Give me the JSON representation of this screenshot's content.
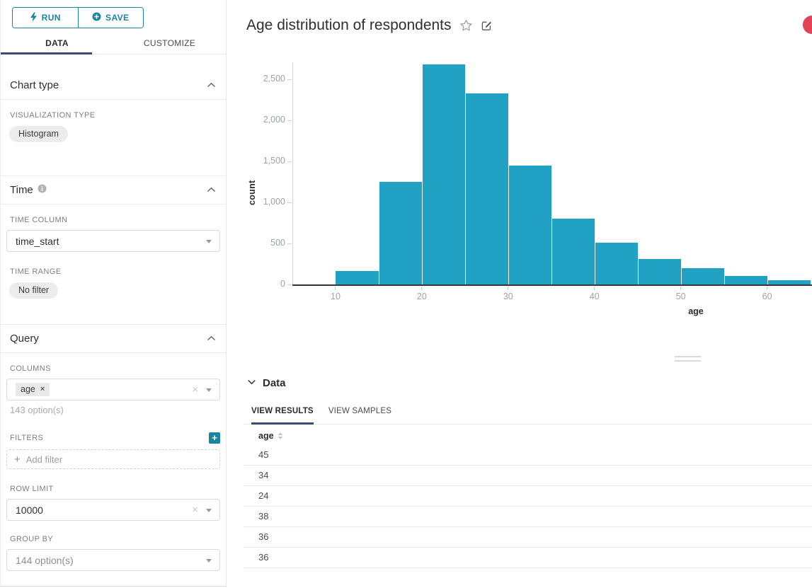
{
  "colors": {
    "accent": "#1a85a0",
    "tab_ink": "#394a75",
    "badge": "#e04355",
    "bar": "#21a1c4"
  },
  "sidebar": {
    "run_button": "RUN",
    "save_button": "SAVE",
    "tabs": {
      "data": "DATA",
      "customize": "CUSTOMIZE"
    },
    "chart_type": {
      "title": "Chart type",
      "viz_label": "VISUALIZATION TYPE",
      "viz_value": "Histogram"
    },
    "time": {
      "title": "Time",
      "column_label": "TIME COLUMN",
      "column_value": "time_start",
      "range_label": "TIME RANGE",
      "range_value": "No filter"
    },
    "query": {
      "title": "Query",
      "columns_label": "COLUMNS",
      "columns_selected": "age",
      "columns_helper": "143 option(s)",
      "filters_label": "FILTERS",
      "add_filter_label": "Add filter",
      "row_limit_label": "ROW LIMIT",
      "row_limit_value": "10000",
      "group_by_label": "GROUP BY",
      "group_by_placeholder": "144 option(s)"
    }
  },
  "header": {
    "title": "Age distribution of respondents"
  },
  "chart_data": {
    "type": "bar",
    "subtype": "histogram",
    "title": "Age distribution of respondents",
    "xlabel": "age",
    "ylabel": "count",
    "series_name": "count",
    "bin_edges": [
      10,
      15,
      20,
      25,
      30,
      35,
      40,
      45,
      50,
      55,
      60,
      65
    ],
    "values": [
      160,
      1250,
      2680,
      2330,
      1450,
      805,
      510,
      310,
      200,
      105,
      50
    ],
    "xticks": [
      10,
      20,
      30,
      40,
      50,
      60
    ],
    "yticks": [
      0,
      500,
      1000,
      1500,
      2000,
      2500
    ],
    "xlim": [
      5,
      65.2
    ],
    "ylim": [
      0,
      2710
    ],
    "grid": false,
    "legend": false,
    "bar_color": "#21a1c4"
  },
  "data_panel": {
    "title": "Data",
    "tabs": {
      "results": "VIEW RESULTS",
      "samples": "VIEW SAMPLES"
    },
    "table": {
      "columns": [
        "age"
      ],
      "rows": [
        "45",
        "34",
        "24",
        "38",
        "36",
        "36"
      ]
    }
  },
  "icons": {
    "close": "×",
    "plus": "+",
    "clear": "×"
  }
}
